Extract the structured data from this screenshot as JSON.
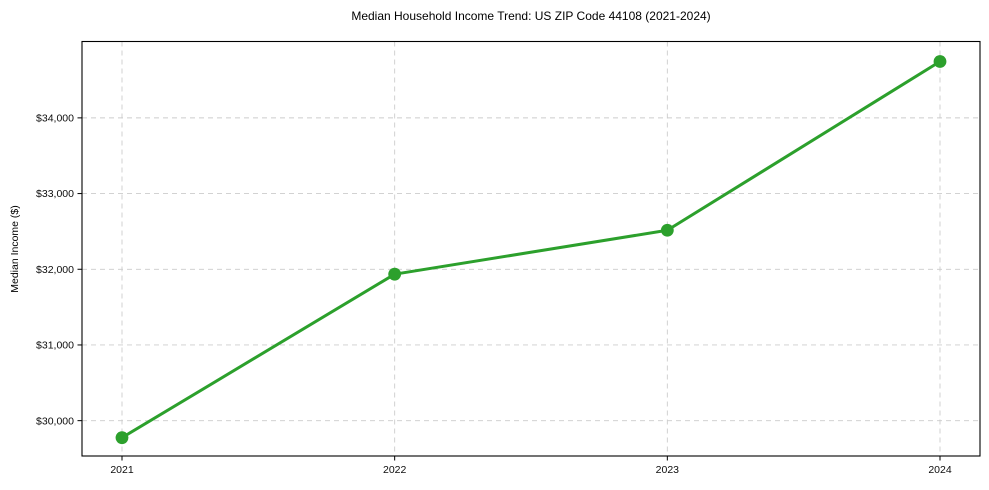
{
  "chart_data": {
    "type": "line",
    "title": "Median Household Income Trend: US ZIP Code 44108 (2021-2024)",
    "xlabel": "",
    "ylabel": "Median Income ($)",
    "categories": [
      "2021",
      "2022",
      "2023",
      "2024"
    ],
    "series": [
      {
        "name": "Median Household Income",
        "values": [
          29775,
          31935,
          32515,
          34745
        ]
      }
    ],
    "yticks": [
      30000,
      31000,
      32000,
      33000,
      34000
    ],
    "ytick_labels": [
      "$30,000",
      "$31,000",
      "$32,000",
      "$33,000",
      "$34,000"
    ],
    "ylim": [
      29533,
      35009
    ],
    "grid": true,
    "grid_style": "dashed",
    "legend_position": "none",
    "line_color": "#2ca02c",
    "marker": "circle",
    "marker_color": "#2ca02c",
    "grid_color": "#cccccc",
    "spine_color": "#000000",
    "text_color": "#000000"
  }
}
